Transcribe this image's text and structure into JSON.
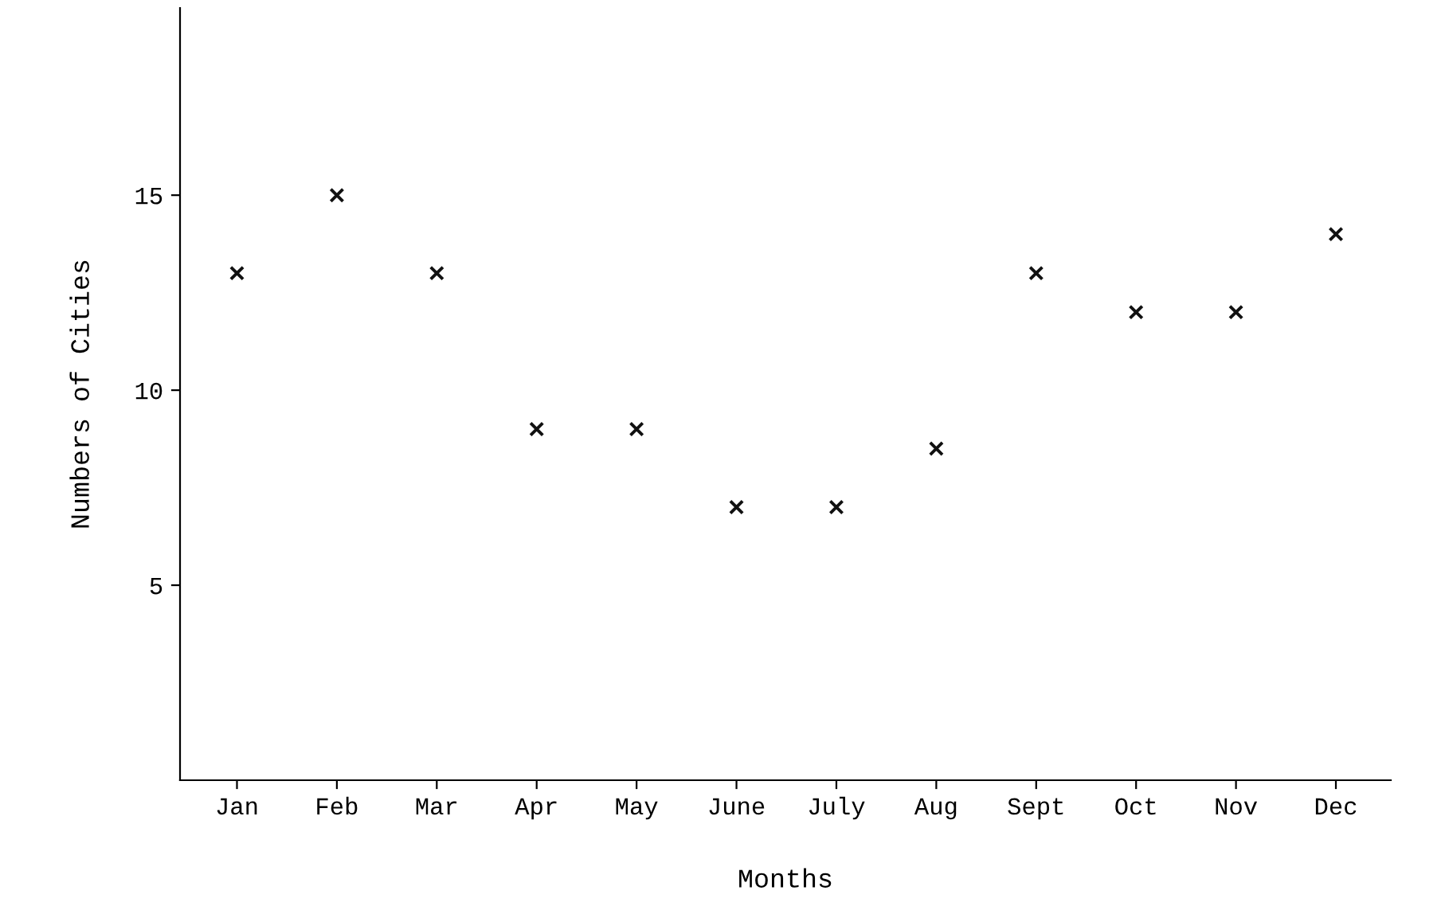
{
  "chart_data": {
    "type": "scatter",
    "xlabel": "Months",
    "ylabel": "Numbers of Cities",
    "categories": [
      "Jan",
      "Feb",
      "Mar",
      "Apr",
      "May",
      "June",
      "July",
      "Aug",
      "Sept",
      "Oct",
      "Nov",
      "Dec"
    ],
    "values": [
      13,
      15,
      13,
      9,
      9,
      7,
      7,
      8.5,
      13,
      12,
      12,
      14
    ],
    "color": "#111111",
    "marker": "cross",
    "grid": false,
    "legend": false,
    "ylim": [
      0,
      19.8
    ],
    "yticks": [
      5,
      10,
      15
    ]
  }
}
